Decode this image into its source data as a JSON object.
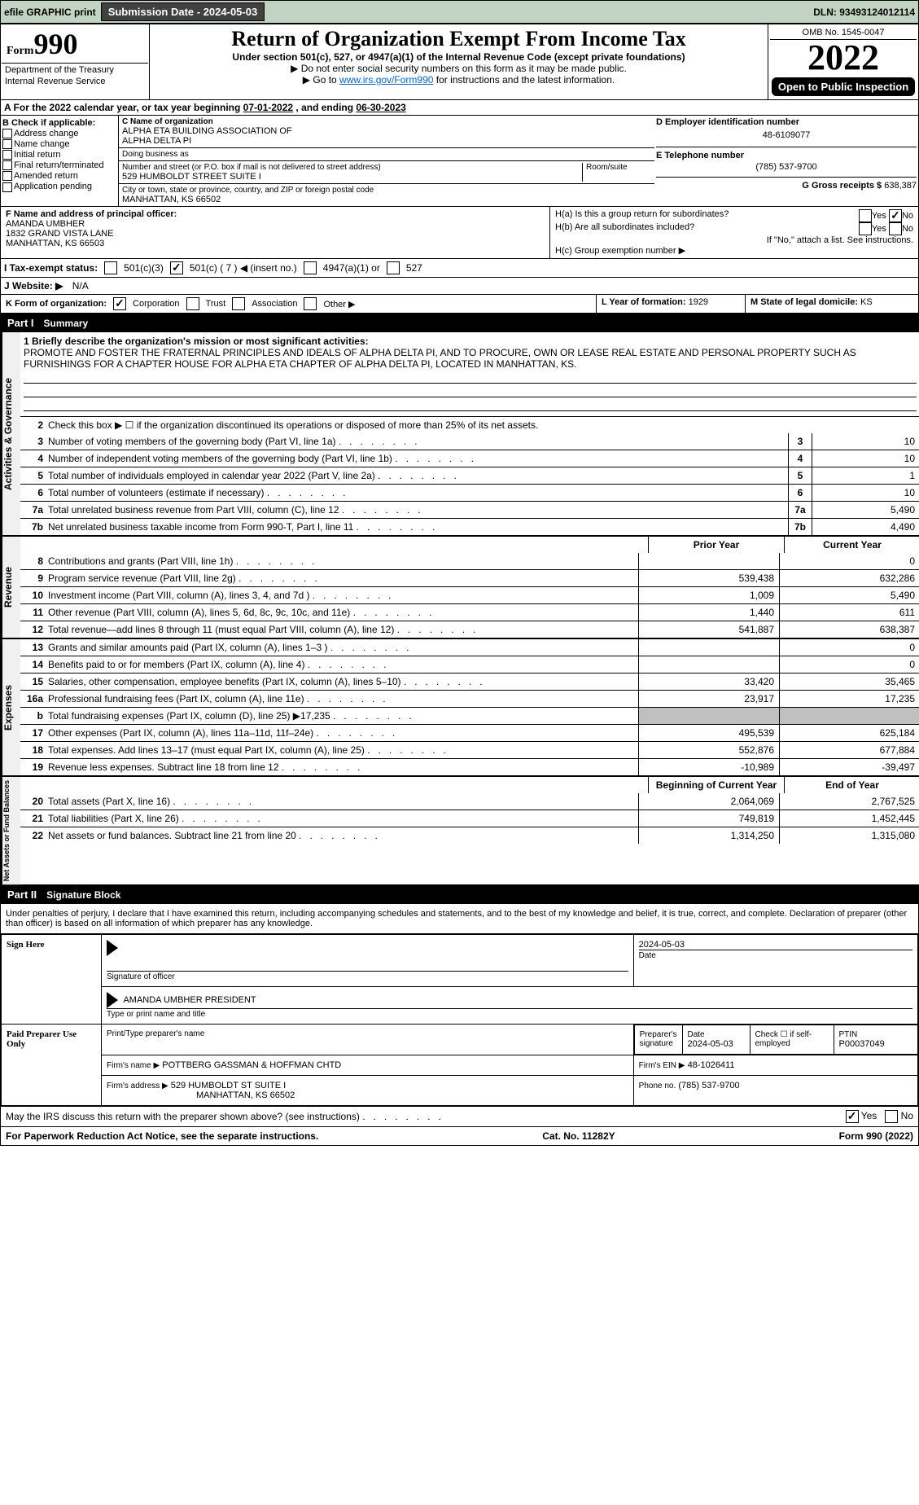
{
  "header_strip": {
    "efile_label": "efile GRAPHIC print",
    "submission_label": "Submission Date - 2024-05-03",
    "dln_label": "DLN: 93493124012114"
  },
  "title_block": {
    "form_label": "Form",
    "form_num": "990",
    "dept1": "Department of the Treasury",
    "dept2": "Internal Revenue Service",
    "main_title": "Return of Organization Exempt From Income Tax",
    "subtitle": "Under section 501(c), 527, or 4947(a)(1) of the Internal Revenue Code (except private foundations)",
    "instr1": "▶ Do not enter social security numbers on this form as it may be made public.",
    "instr2_a": "▶ Go to ",
    "instr2_link": "www.irs.gov/Form990",
    "instr2_b": " for instructions and the latest information.",
    "omb": "OMB No. 1545-0047",
    "year": "2022",
    "open_pub": "Open to Public Inspection"
  },
  "row_a": {
    "text_a": "A For the 2022 calendar year, or tax year beginning ",
    "begin": "07-01-2022",
    "mid": "    , and ending ",
    "end": "06-30-2023"
  },
  "section_b": {
    "label": "B Check if applicable:",
    "opts": [
      "Address change",
      "Name change",
      "Initial return",
      "Final return/terminated",
      "Amended return",
      "Application pending"
    ]
  },
  "section_c": {
    "name_label": "C Name of organization",
    "name1": "ALPHA ETA BUILDING ASSOCIATION OF",
    "name2": "ALPHA DELTA PI",
    "dba_label": "Doing business as",
    "addr_label": "Number and street (or P.O. box if mail is not delivered to street address)",
    "room_label": "Room/suite",
    "addr": "529 HUMBOLDT STREET SUITE I",
    "city_label": "City or town, state or province, country, and ZIP or foreign postal code",
    "city": "MANHATTAN, KS  66502"
  },
  "section_d": {
    "label": "D Employer identification number",
    "ein": "48-6109077"
  },
  "section_e": {
    "label": "E Telephone number",
    "phone": "(785) 537-9700"
  },
  "section_g": {
    "label": "G Gross receipts $",
    "amount": "638,387"
  },
  "section_f": {
    "label": "F  Name and address of principal officer:",
    "name": "AMANDA UMBHER",
    "addr1": "1832 GRAND VISTA LANE",
    "addr2": "MANHATTAN, KS  66503"
  },
  "section_h": {
    "ha_label": "H(a)  Is this a group return for subordinates?",
    "hb_label": "H(b)  Are all subordinates included?",
    "hb_note": "If \"No,\" attach a list. See instructions.",
    "hc_label": "H(c)  Group exemption number ▶",
    "yes": "Yes",
    "no": "No"
  },
  "section_i": {
    "label": "I   Tax-exempt status:",
    "o1": "501(c)(3)",
    "o2": "501(c) ( 7 ) ◀ (insert no.)",
    "o3": "4947(a)(1) or",
    "o4": "527"
  },
  "section_j": {
    "label": "J   Website: ▶",
    "val": "N/A"
  },
  "section_k": {
    "label": "K Form of organization:",
    "o1": "Corporation",
    "o2": "Trust",
    "o3": "Association",
    "o4": "Other ▶"
  },
  "section_l": {
    "label": "L Year of formation:",
    "val": "1929"
  },
  "section_m": {
    "label": "M State of legal domicile:",
    "val": "KS"
  },
  "part1": {
    "label": "Part I",
    "title": "Summary",
    "side_gov": "Activities & Governance",
    "side_rev": "Revenue",
    "side_exp": "Expenses",
    "side_net": "Net Assets or Fund Balances",
    "l1_label": "1  Briefly describe the organization's mission or most significant activities:",
    "l1_text": "PROMOTE AND FOSTER THE FRATERNAL PRINCIPLES AND IDEALS OF ALPHA DELTA PI, AND TO PROCURE, OWN OR LEASE REAL ESTATE AND PERSONAL PROPERTY SUCH AS FURNISHINGS FOR A CHAPTER HOUSE FOR ALPHA ETA CHAPTER OF ALPHA DELTA PI, LOCATED IN MANHATTAN, KS.",
    "l2": "Check this box ▶ ☐ if the organization discontinued its operations or disposed of more than 25% of its net assets.",
    "rows_gov": [
      {
        "n": "3",
        "d": "Number of voting members of the governing body (Part VI, line 1a)",
        "v": "10"
      },
      {
        "n": "4",
        "d": "Number of independent voting members of the governing body (Part VI, line 1b)",
        "v": "10"
      },
      {
        "n": "5",
        "d": "Total number of individuals employed in calendar year 2022 (Part V, line 2a)",
        "v": "1"
      },
      {
        "n": "6",
        "d": "Total number of volunteers (estimate if necessary)",
        "v": "10"
      },
      {
        "n": "7a",
        "d": "Total unrelated business revenue from Part VIII, column (C), line 12",
        "v": "5,490"
      },
      {
        "n": "7b",
        "d": "Net unrelated business taxable income from Form 990-T, Part I, line 11",
        "v": "4,490"
      }
    ],
    "hdr_prior": "Prior Year",
    "hdr_curr": "Current Year",
    "rows_rev": [
      {
        "n": "8",
        "d": "Contributions and grants (Part VIII, line 1h)",
        "p": "",
        "c": "0"
      },
      {
        "n": "9",
        "d": "Program service revenue (Part VIII, line 2g)",
        "p": "539,438",
        "c": "632,286"
      },
      {
        "n": "10",
        "d": "Investment income (Part VIII, column (A), lines 3, 4, and 7d )",
        "p": "1,009",
        "c": "5,490"
      },
      {
        "n": "11",
        "d": "Other revenue (Part VIII, column (A), lines 5, 6d, 8c, 9c, 10c, and 11e)",
        "p": "1,440",
        "c": "611"
      },
      {
        "n": "12",
        "d": "Total revenue—add lines 8 through 11 (must equal Part VIII, column (A), line 12)",
        "p": "541,887",
        "c": "638,387"
      }
    ],
    "rows_exp": [
      {
        "n": "13",
        "d": "Grants and similar amounts paid (Part IX, column (A), lines 1–3 )",
        "p": "",
        "c": "0"
      },
      {
        "n": "14",
        "d": "Benefits paid to or for members (Part IX, column (A), line 4)",
        "p": "",
        "c": "0"
      },
      {
        "n": "15",
        "d": "Salaries, other compensation, employee benefits (Part IX, column (A), lines 5–10)",
        "p": "33,420",
        "c": "35,465"
      },
      {
        "n": "16a",
        "d": "Professional fundraising fees (Part IX, column (A), line 11e)",
        "p": "23,917",
        "c": "17,235"
      },
      {
        "n": "b",
        "d": "Total fundraising expenses (Part IX, column (D), line 25) ▶17,235",
        "p": "__GRAY__",
        "c": "__GRAY__"
      },
      {
        "n": "17",
        "d": "Other expenses (Part IX, column (A), lines 11a–11d, 11f–24e)",
        "p": "495,539",
        "c": "625,184"
      },
      {
        "n": "18",
        "d": "Total expenses. Add lines 13–17 (must equal Part IX, column (A), line 25)",
        "p": "552,876",
        "c": "677,884"
      },
      {
        "n": "19",
        "d": "Revenue less expenses. Subtract line 18 from line 12",
        "p": "-10,989",
        "c": "-39,497"
      }
    ],
    "hdr_begin": "Beginning of Current Year",
    "hdr_end": "End of Year",
    "rows_net": [
      {
        "n": "20",
        "d": "Total assets (Part X, line 16)",
        "p": "2,064,069",
        "c": "2,767,525"
      },
      {
        "n": "21",
        "d": "Total liabilities (Part X, line 26)",
        "p": "749,819",
        "c": "1,452,445"
      },
      {
        "n": "22",
        "d": "Net assets or fund balances. Subtract line 21 from line 20",
        "p": "1,314,250",
        "c": "1,315,080"
      }
    ]
  },
  "part2": {
    "label": "Part II",
    "title": "Signature Block",
    "declaration": "Under penalties of perjury, I declare that I have examined this return, including accompanying schedules and statements, and to the best of my knowledge and belief, it is true, correct, and complete. Declaration of preparer (other than officer) is based on all information of which preparer has any knowledge.",
    "sign_here": "Sign Here",
    "sig_officer_lbl": "Signature of officer",
    "sig_date_lbl": "Date",
    "sig_date": "2024-05-03",
    "officer_name": "AMANDA UMBHER  PRESIDENT",
    "officer_type_lbl": "Type or print name and title",
    "paid": "Paid Preparer Use Only",
    "pp_name_lbl": "Print/Type preparer's name",
    "pp_sig_lbl": "Preparer's signature",
    "pp_date_lbl": "Date",
    "pp_date": "2024-05-03",
    "pp_check_lbl": "Check ☐ if self-employed",
    "pp_ptin_lbl": "PTIN",
    "pp_ptin": "P00037049",
    "firm_name_lbl": "Firm's name    ▶",
    "firm_name": "POTTBERG GASSMAN & HOFFMAN CHTD",
    "firm_ein_lbl": "Firm's EIN ▶",
    "firm_ein": "48-1026411",
    "firm_addr_lbl": "Firm's address ▶",
    "firm_addr1": "529 HUMBOLDT ST SUITE I",
    "firm_addr2": "MANHATTAN, KS  66502",
    "firm_phone_lbl": "Phone no.",
    "firm_phone": "(785) 537-9700"
  },
  "footer": {
    "discuss": "May the IRS discuss this return with the preparer shown above? (see instructions)",
    "yes": "Yes",
    "no": "No",
    "pra": "For Paperwork Reduction Act Notice, see the separate instructions.",
    "cat": "Cat. No. 11282Y",
    "form": "Form 990 (2022)"
  },
  "colors": {
    "header_green": "#c0d4c1",
    "btn_gray": "#404040",
    "link": "#0066cc"
  }
}
